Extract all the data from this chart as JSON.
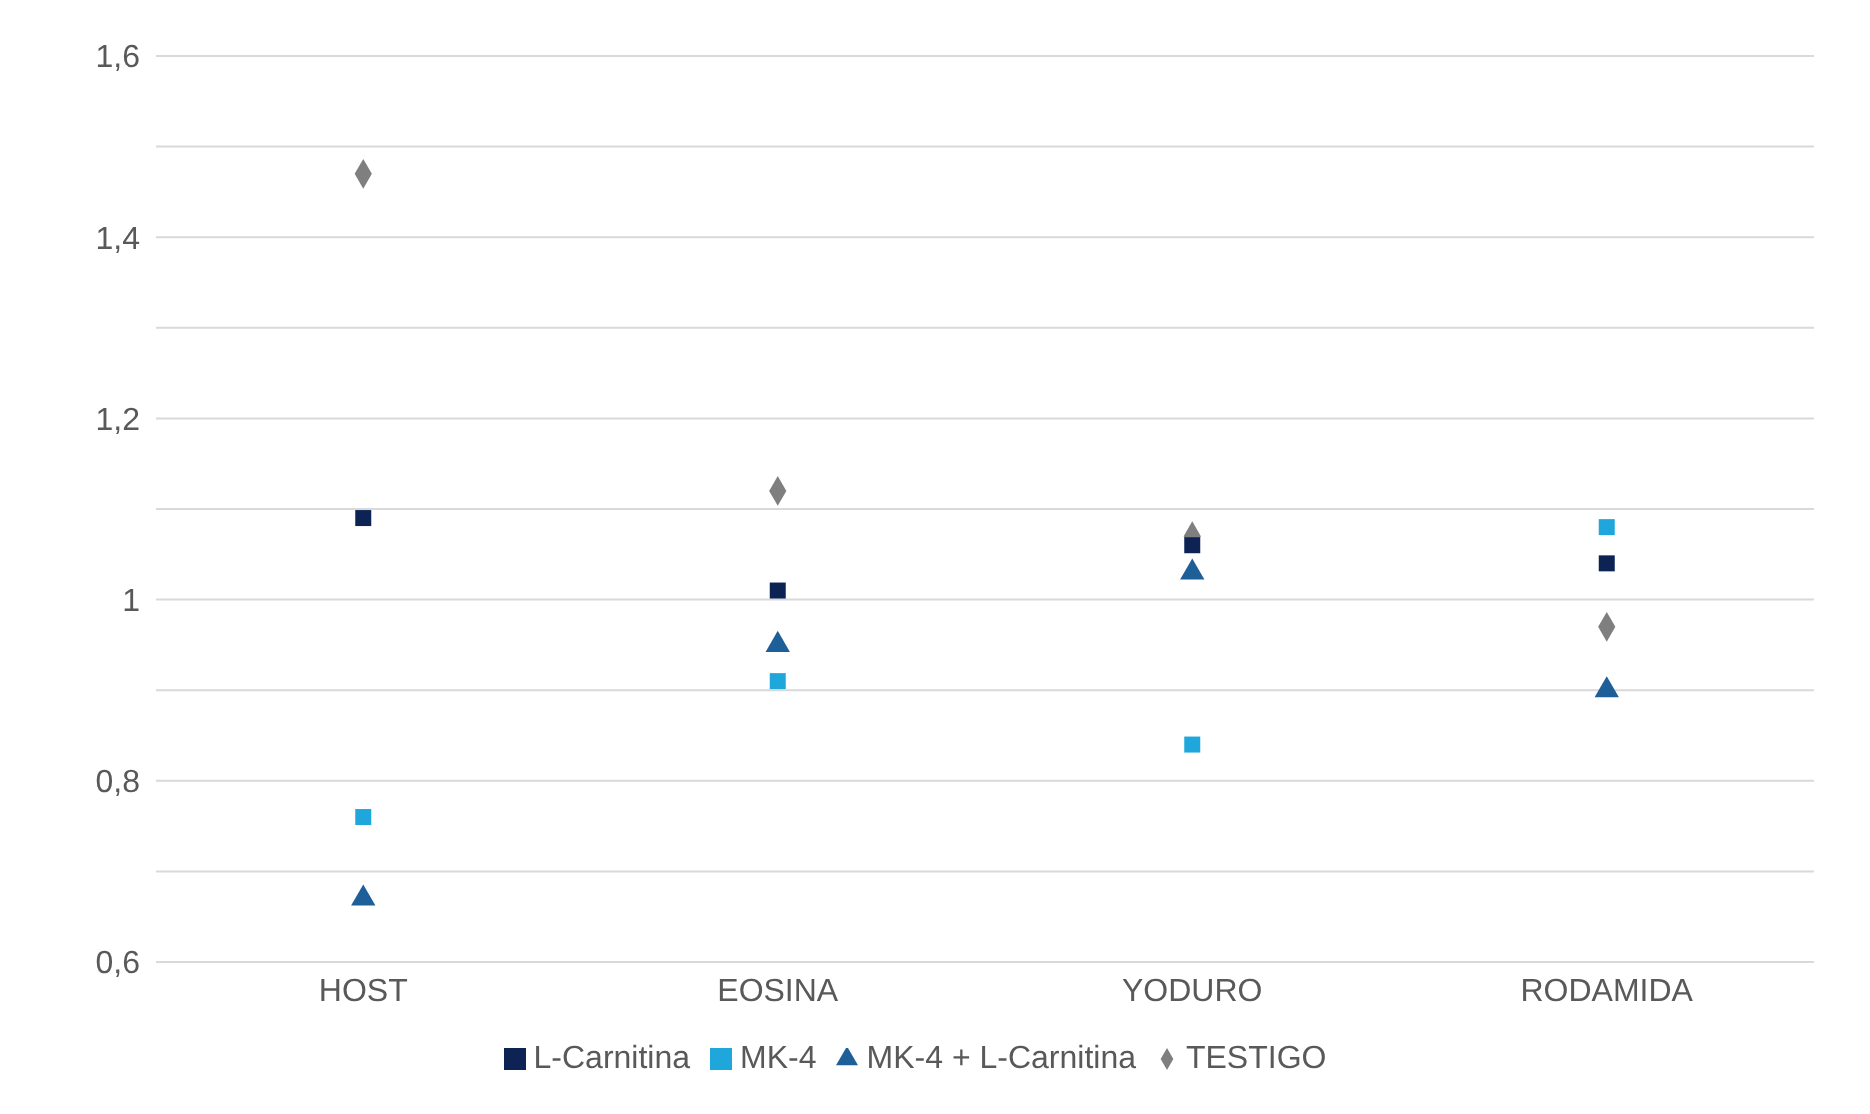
{
  "chart_data": {
    "type": "scatter",
    "categories": [
      "HOST",
      "EOSINA",
      "YODURO",
      "RODAMIDA"
    ],
    "series": [
      {
        "name": "TESTIGO",
        "color": "#7f7f7f",
        "marker": "diamond",
        "values": [
          1.47,
          1.12,
          1.07,
          0.97
        ]
      },
      {
        "name": "L-Carnitina",
        "color": "#0c2354",
        "marker": "square",
        "values": [
          1.09,
          1.01,
          1.06,
          1.04
        ]
      },
      {
        "name": "MK-4 + L-Carnitina",
        "color": "#1f5f99",
        "marker": "triangle",
        "values": [
          0.67,
          0.95,
          1.03,
          0.9
        ]
      },
      {
        "name": "MK-4",
        "color": "#1fa7dc",
        "marker": "square",
        "values": [
          0.76,
          0.91,
          0.84,
          1.08
        ]
      }
    ],
    "ylim": [
      0.6,
      1.6
    ],
    "yticks": [
      {
        "value": 0.6,
        "label": "0,6"
      },
      {
        "value": 0.7,
        "label": null
      },
      {
        "value": 0.8,
        "label": "0,8"
      },
      {
        "value": 0.9,
        "label": null
      },
      1,
      {
        "value": 1.1,
        "label": null
      },
      {
        "value": 1.2,
        "label": "1,2"
      },
      {
        "value": 1.3,
        "label": null
      },
      {
        "value": 1.4,
        "label": "1,4"
      },
      {
        "value": 1.5,
        "label": null
      },
      {
        "value": 1.6,
        "label": "1,6"
      }
    ],
    "grid": "y",
    "legend": "bottom"
  }
}
